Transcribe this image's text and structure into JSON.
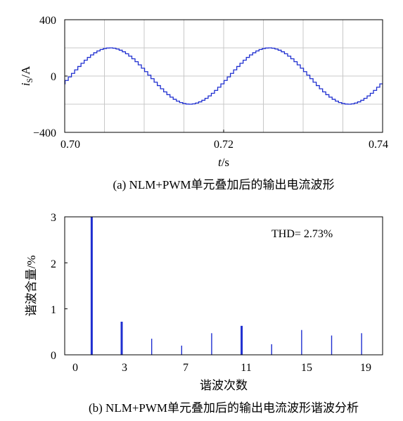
{
  "chart_data": [
    {
      "type": "line",
      "caption": "(a) NLM+PWM单元叠加后的输出电流波形",
      "ylabel": "i",
      "ylabel_sub": "S",
      "ylabel_unit": "/A",
      "xlabel": "t",
      "xlabel_unit": "/s",
      "xlim": [
        0.7,
        0.74
      ],
      "ylim": [
        -400,
        400
      ],
      "x_ticks": [
        "0.70",
        "0.72",
        "0.74"
      ],
      "y_ticks": [
        "400",
        "0",
        "−400"
      ],
      "grid": true,
      "series": [
        {
          "waveform": "stepped sine",
          "amplitude": 200,
          "frequency_hz": 50,
          "phase_zero_crossing_t": 0.7005,
          "color": "#1f2fd0"
        }
      ]
    },
    {
      "type": "bar",
      "caption": "(b) NLM+PWM单元叠加后的输出电流波形谐波分析",
      "ylabel": "谐波含量/%",
      "xlabel": "谐波次数",
      "xlim": [
        -0.8,
        20.4
      ],
      "ylim": [
        0,
        3
      ],
      "x_ticks": [
        "0",
        "3",
        "7",
        "11",
        "15",
        "19"
      ],
      "y_ticks": [
        "3",
        "2",
        "1",
        "0"
      ],
      "annotation": "THD= 2.73%",
      "categories": [
        1,
        3,
        5,
        7,
        9,
        11,
        13,
        15,
        17,
        19
      ],
      "values": [
        3.0,
        0.72,
        0.35,
        0.2,
        0.47,
        0.63,
        0.23,
        0.54,
        0.42,
        0.47
      ],
      "color": "#1f2fd0"
    }
  ]
}
